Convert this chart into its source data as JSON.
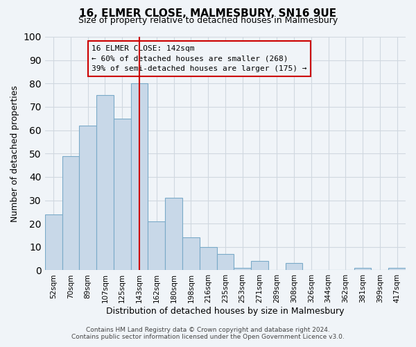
{
  "title": "16, ELMER CLOSE, MALMESBURY, SN16 9UE",
  "subtitle": "Size of property relative to detached houses in Malmesbury",
  "xlabel": "Distribution of detached houses by size in Malmesbury",
  "ylabel": "Number of detached properties",
  "bar_color": "#c8d8e8",
  "bar_edge_color": "#7aaac8",
  "bins": [
    "52sqm",
    "70sqm",
    "89sqm",
    "107sqm",
    "125sqm",
    "143sqm",
    "162sqm",
    "180sqm",
    "198sqm",
    "216sqm",
    "235sqm",
    "253sqm",
    "271sqm",
    "289sqm",
    "308sqm",
    "326sqm",
    "344sqm",
    "362sqm",
    "381sqm",
    "399sqm",
    "417sqm"
  ],
  "values": [
    24,
    49,
    62,
    75,
    65,
    80,
    21,
    31,
    14,
    10,
    7,
    1,
    4,
    0,
    3,
    0,
    0,
    0,
    1,
    0,
    1
  ],
  "marker_bin": "143sqm",
  "marker_label": "16 ELMER CLOSE: 142sqm",
  "annotation_line1": "← 60% of detached houses are smaller (268)",
  "annotation_line2": "39% of semi-detached houses are larger (175) →",
  "vline_color": "#cc0000",
  "annotation_box_edge": "#cc0000",
  "ylim": [
    0,
    100
  ],
  "footer1": "Contains HM Land Registry data © Crown copyright and database right 2024.",
  "footer2": "Contains public sector information licensed under the Open Government Licence v3.0.",
  "grid_color": "#d0d8e0",
  "background_color": "#f0f4f8"
}
